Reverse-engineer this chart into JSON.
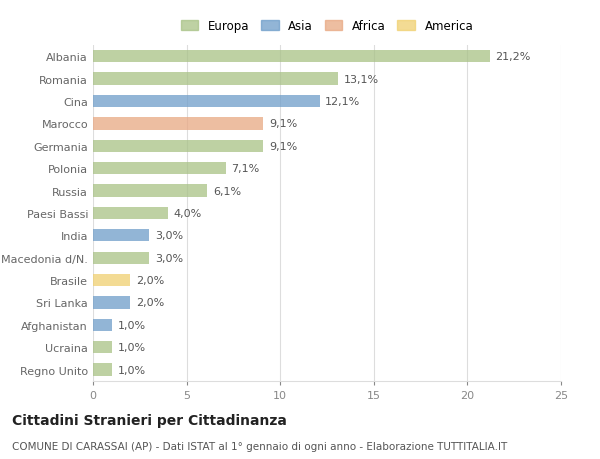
{
  "countries": [
    "Albania",
    "Romania",
    "Cina",
    "Marocco",
    "Germania",
    "Polonia",
    "Russia",
    "Paesi Bassi",
    "India",
    "Macedonia d/N.",
    "Brasile",
    "Sri Lanka",
    "Afghanistan",
    "Ucraina",
    "Regno Unito"
  ],
  "values": [
    21.2,
    13.1,
    12.1,
    9.1,
    9.1,
    7.1,
    6.1,
    4.0,
    3.0,
    3.0,
    2.0,
    2.0,
    1.0,
    1.0,
    1.0
  ],
  "labels": [
    "21,2%",
    "13,1%",
    "12,1%",
    "9,1%",
    "9,1%",
    "7,1%",
    "6,1%",
    "4,0%",
    "3,0%",
    "3,0%",
    "2,0%",
    "2,0%",
    "1,0%",
    "1,0%",
    "1,0%"
  ],
  "continents": [
    "Europa",
    "Europa",
    "Asia",
    "Africa",
    "Europa",
    "Europa",
    "Europa",
    "Europa",
    "Asia",
    "Europa",
    "America",
    "Asia",
    "Asia",
    "Europa",
    "Europa"
  ],
  "colors": {
    "Europa": "#a8c285",
    "Asia": "#6e9dc9",
    "Africa": "#e8a882",
    "America": "#f0d070"
  },
  "legend_order": [
    "Europa",
    "Asia",
    "Africa",
    "America"
  ],
  "xlim": [
    0,
    25
  ],
  "xticks": [
    0,
    5,
    10,
    15,
    20,
    25
  ],
  "title": "Cittadini Stranieri per Cittadinanza",
  "subtitle": "COMUNE DI CARASSAI (AP) - Dati ISTAT al 1° gennaio di ogni anno - Elaborazione TUTTITALIA.IT",
  "background_color": "#ffffff",
  "bar_alpha": 0.75,
  "grid_color": "#dddddd",
  "label_fontsize": 8,
  "tick_fontsize": 8,
  "title_fontsize": 10,
  "subtitle_fontsize": 7.5
}
